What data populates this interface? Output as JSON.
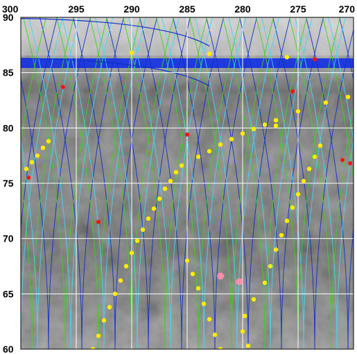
{
  "chart_data": {
    "type": "scatter",
    "title": "",
    "xlabel": "",
    "ylabel": "",
    "x_axis": {
      "reversed": true,
      "range": [
        300,
        270
      ],
      "ticks": [
        "300",
        "295",
        "290",
        "285",
        "280",
        "275",
        "270"
      ]
    },
    "y_axis": {
      "range": [
        60,
        90
      ],
      "ticks": [
        "90",
        "85",
        "80",
        "75",
        "70",
        "65",
        "60"
      ]
    },
    "grid": true,
    "background": "grayscale orbital image mosaic",
    "colors": {
      "track_blue": "#1030c8",
      "track_green": "#40d020",
      "track_cyan": "#40d8f0",
      "point_yellow": "#ffee00",
      "point_red": "#ff1010",
      "point_pink": "#ff8fa8",
      "grid": "#ffffff"
    },
    "series": [
      {
        "marker": "yellow",
        "points": [
          [
            299.5,
            76.3
          ],
          [
            299.0,
            76.9
          ],
          [
            298.5,
            77.5
          ],
          [
            298.0,
            78.2
          ],
          [
            297.5,
            78.8
          ],
          [
            294.0,
            59.0
          ],
          [
            293.5,
            60.0
          ],
          [
            293.0,
            61.2
          ],
          [
            292.5,
            62.6
          ],
          [
            292.0,
            63.8
          ],
          [
            291.5,
            65.0
          ],
          [
            291.0,
            66.2
          ],
          [
            290.5,
            67.5
          ],
          [
            290.0,
            68.7
          ],
          [
            289.5,
            69.8
          ],
          [
            289.0,
            70.8
          ],
          [
            288.5,
            71.8
          ],
          [
            288.0,
            72.7
          ],
          [
            287.5,
            73.6
          ],
          [
            287.0,
            74.5
          ],
          [
            286.5,
            75.2
          ],
          [
            286.0,
            76.0
          ],
          [
            285.5,
            76.6
          ],
          [
            284.0,
            77.4
          ],
          [
            283.0,
            77.9
          ],
          [
            282.0,
            78.5
          ],
          [
            281.0,
            79.0
          ],
          [
            280.0,
            79.5
          ],
          [
            279.0,
            79.9
          ],
          [
            278.0,
            80.3
          ],
          [
            277.0,
            80.7
          ],
          [
            282.0,
            60.0
          ],
          [
            282.5,
            61.3
          ],
          [
            283.0,
            62.7
          ],
          [
            283.5,
            64.1
          ],
          [
            284.0,
            65.5
          ],
          [
            284.5,
            66.8
          ],
          [
            285.0,
            68.0
          ],
          [
            279.5,
            60.3
          ],
          [
            280.0,
            61.6
          ],
          [
            279.8,
            63.0
          ],
          [
            279.0,
            64.5
          ],
          [
            278.0,
            66.0
          ],
          [
            277.5,
            67.5
          ],
          [
            277.0,
            69.0
          ],
          [
            276.5,
            70.3
          ],
          [
            276.0,
            71.6
          ],
          [
            275.5,
            72.8
          ],
          [
            275.0,
            74.0
          ],
          [
            274.5,
            75.2
          ],
          [
            274.0,
            76.3
          ],
          [
            273.5,
            77.4
          ],
          [
            273.0,
            78.4
          ],
          [
            290.0,
            86.8
          ],
          [
            283.0,
            86.7
          ],
          [
            276.0,
            86.4
          ],
          [
            277.0,
            80.2
          ],
          [
            275.0,
            81.5
          ],
          [
            272.5,
            82.3
          ],
          [
            270.5,
            82.8
          ]
        ]
      },
      {
        "marker": "red",
        "points": [
          [
            299.3,
            75.5
          ],
          [
            296.2,
            83.7
          ],
          [
            293.0,
            71.5
          ],
          [
            285.0,
            79.4
          ],
          [
            275.5,
            83.3
          ],
          [
            273.5,
            86.2
          ],
          [
            271.0,
            77.1
          ],
          [
            270.3,
            76.8
          ]
        ]
      },
      {
        "marker": "pink",
        "points": [
          [
            282.0,
            66.6
          ],
          [
            280.3,
            66.1
          ]
        ]
      }
    ],
    "track_families": [
      {
        "color": "blue",
        "bases": [
          300.5,
          297.5,
          294.5,
          291.5,
          288.5,
          285.5,
          282.5,
          279.5,
          276.5,
          273.5,
          270.5,
          267.5
        ]
      },
      {
        "color": "green",
        "bases": [
          301.5,
          299.0,
          296.0,
          293.0,
          290.0,
          287.0,
          284.0,
          281.0,
          278.0,
          275.0,
          272.0,
          269.0
        ]
      },
      {
        "color": "cyan",
        "bases": [
          300.0,
          298.5,
          295.5,
          292.5,
          289.5,
          286.5,
          283.5,
          280.5,
          277.5,
          274.5,
          271.5,
          268.5
        ]
      }
    ]
  }
}
